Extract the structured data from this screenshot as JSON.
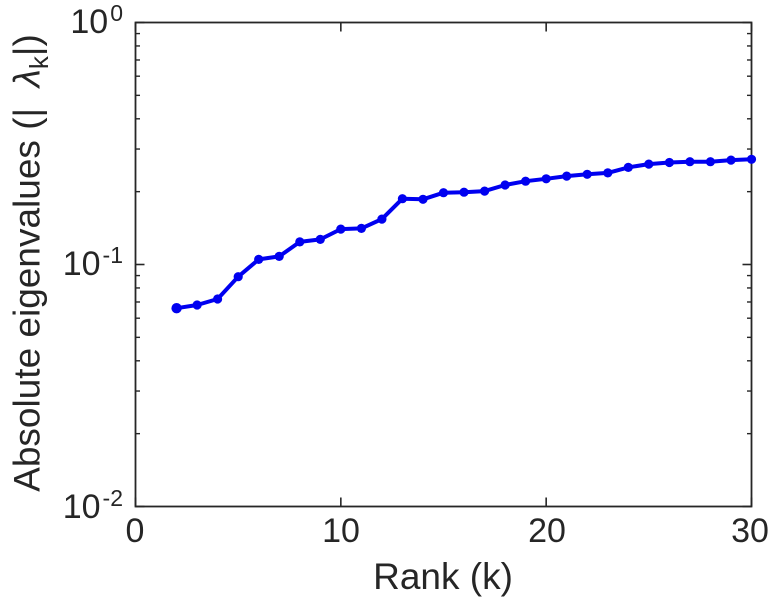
{
  "figure": {
    "background": "#ffffff",
    "axis_color": "#262626",
    "text_color": "#262626"
  },
  "chart_data": {
    "type": "line",
    "title": "",
    "xlabel": "Rank (k)",
    "ylabel": "Absolute eigenvalues (| λ_k |)",
    "ylabel_parts": {
      "prefix": "Absolute eigenvalues (|  ",
      "lambda": "λ",
      "sub": "k",
      "suffix": "|)"
    },
    "xlim": [
      0,
      30
    ],
    "ylim": [
      0.01,
      1
    ],
    "yscale": "log",
    "grid": false,
    "xticks": [
      0,
      10,
      20,
      30
    ],
    "yticks": [
      {
        "value": 1,
        "base": "10",
        "exp": "0"
      },
      {
        "value": 0.1,
        "base": "10",
        "exp": "-1"
      },
      {
        "value": 0.01,
        "base": "10",
        "exp": "-2"
      }
    ],
    "series": [
      {
        "name": "absolute-eigenvalues",
        "color": "#0000f0",
        "marker": "circle",
        "x": [
          2,
          3,
          4,
          5,
          6,
          7,
          8,
          9,
          10,
          11,
          12,
          13,
          14,
          15,
          16,
          17,
          18,
          19,
          20,
          21,
          22,
          23,
          24,
          25,
          26,
          27,
          28,
          29,
          30
        ],
        "y": [
          0.066,
          0.068,
          0.072,
          0.089,
          0.105,
          0.108,
          0.124,
          0.127,
          0.14,
          0.141,
          0.154,
          0.187,
          0.186,
          0.198,
          0.199,
          0.201,
          0.213,
          0.221,
          0.226,
          0.232,
          0.236,
          0.239,
          0.252,
          0.26,
          0.264,
          0.266,
          0.266,
          0.27,
          0.272
        ]
      }
    ]
  }
}
